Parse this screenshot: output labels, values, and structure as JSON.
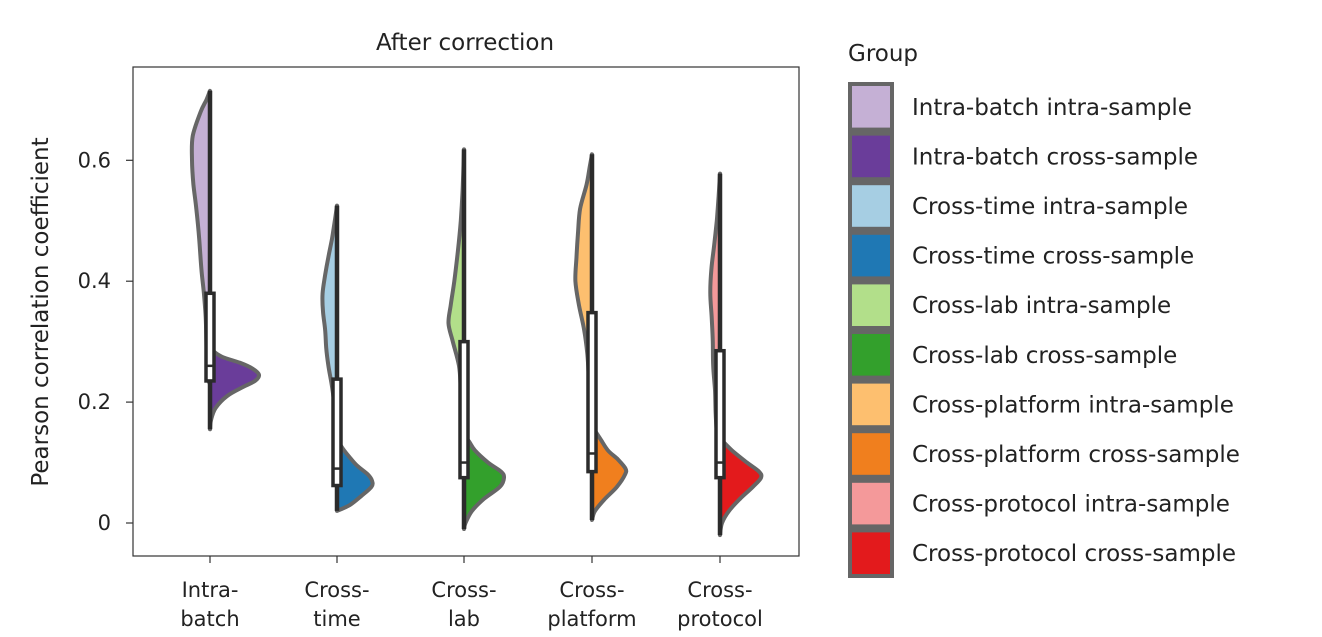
{
  "chart_data": {
    "type": "violin",
    "title": "After correction",
    "ylabel": "Pearson correlation coefficient",
    "xlabel": "",
    "ylim": [
      -0.06,
      0.75
    ],
    "yticks": [
      0,
      0.2,
      0.4,
      0.6
    ],
    "ytick_labels": [
      "0",
      "0.2",
      "0.4",
      "0.6"
    ],
    "grid": false,
    "legend_position": "right",
    "legend_title": "Group",
    "categories": [
      {
        "label_lines": [
          "Intra-",
          "batch"
        ],
        "label": "Intra-batch"
      },
      {
        "label_lines": [
          "Cross-",
          "time"
        ],
        "label": "Cross-time"
      },
      {
        "label_lines": [
          "Cross-",
          "lab"
        ],
        "label": "Cross-lab"
      },
      {
        "label_lines": [
          "Cross-",
          "platform"
        ],
        "label": "Cross-platform"
      },
      {
        "label_lines": [
          "Cross-",
          "protocol"
        ],
        "label": "Cross-protocol"
      }
    ],
    "series": [
      {
        "name": "Intra-batch intra-sample",
        "color": "#c5b0d5"
      },
      {
        "name": "Intra-batch cross-sample",
        "color": "#6a3d9a"
      },
      {
        "name": "Cross-time intra-sample",
        "color": "#a6cee3"
      },
      {
        "name": "Cross-time cross-sample",
        "color": "#1f78b4"
      },
      {
        "name": "Cross-lab intra-sample",
        "color": "#b2df8a"
      },
      {
        "name": "Cross-lab cross-sample",
        "color": "#33a02c"
      },
      {
        "name": "Cross-platform intra-sample",
        "color": "#fdbf6f"
      },
      {
        "name": "Cross-platform cross-sample",
        "color": "#f07f1e"
      },
      {
        "name": "Cross-protocol intra-sample",
        "color": "#f4999a"
      },
      {
        "name": "Cross-protocol cross-sample",
        "color": "#e31a1c"
      }
    ],
    "violins": [
      {
        "category": "Intra-batch",
        "intra": {
          "range": [
            0.23,
            0.715
          ],
          "density": [
            [
              0.23,
              0.0
            ],
            [
              0.24,
              0.7
            ],
            [
              0.26,
              0.9
            ],
            [
              0.3,
              1.0
            ],
            [
              0.34,
              1.2
            ],
            [
              0.38,
              1.7
            ],
            [
              0.42,
              2.4
            ],
            [
              0.47,
              3.0
            ],
            [
              0.52,
              3.8
            ],
            [
              0.56,
              4.6
            ],
            [
              0.6,
              5.0
            ],
            [
              0.64,
              4.8
            ],
            [
              0.68,
              2.6
            ],
            [
              0.7,
              1.0
            ],
            [
              0.715,
              0.0
            ]
          ]
        },
        "cross": {
          "range": [
            0.155,
            0.295
          ],
          "density": [
            [
              0.155,
              0.0
            ],
            [
              0.17,
              0.2
            ],
            [
              0.19,
              1.1
            ],
            [
              0.21,
              3.4
            ],
            [
              0.225,
              6.6
            ],
            [
              0.235,
              9.0
            ],
            [
              0.245,
              9.8
            ],
            [
              0.255,
              8.6
            ],
            [
              0.265,
              6.0
            ],
            [
              0.275,
              2.4
            ],
            [
              0.285,
              0.6
            ],
            [
              0.295,
              0.0
            ]
          ]
        },
        "box": {
          "q1": 0.235,
          "median": 0.26,
          "q3": 0.38,
          "whisker_low": 0.155,
          "whisker_high": 0.715
        }
      },
      {
        "category": "Cross-time",
        "intra": {
          "range": [
            0.175,
            0.525
          ],
          "density": [
            [
              0.175,
              0.0
            ],
            [
              0.18,
              0.4
            ],
            [
              0.2,
              0.8
            ],
            [
              0.23,
              1.5
            ],
            [
              0.26,
              2.4
            ],
            [
              0.29,
              3.0
            ],
            [
              0.32,
              3.3
            ],
            [
              0.35,
              3.9
            ],
            [
              0.38,
              4.0
            ],
            [
              0.41,
              3.3
            ],
            [
              0.44,
              2.4
            ],
            [
              0.47,
              1.4
            ],
            [
              0.5,
              0.6
            ],
            [
              0.525,
              0.0
            ]
          ]
        },
        "cross": {
          "range": [
            0.02,
            0.14
          ],
          "density": [
            [
              0.02,
              0.0
            ],
            [
              0.03,
              2.6
            ],
            [
              0.045,
              4.9
            ],
            [
              0.06,
              6.9
            ],
            [
              0.07,
              7.0
            ],
            [
              0.08,
              6.2
            ],
            [
              0.095,
              4.0
            ],
            [
              0.11,
              2.4
            ],
            [
              0.125,
              1.0
            ],
            [
              0.14,
              0.0
            ]
          ]
        },
        "box": {
          "q1": 0.062,
          "median": 0.09,
          "q3": 0.238,
          "whisker_low": 0.02,
          "whisker_high": 0.525
        }
      },
      {
        "category": "Cross-lab",
        "intra": {
          "range": [
            0.075,
            0.618
          ],
          "density": [
            [
              0.075,
              0.0
            ],
            [
              0.1,
              0.3
            ],
            [
              0.14,
              0.6
            ],
            [
              0.18,
              0.8
            ],
            [
              0.22,
              0.9
            ],
            [
              0.26,
              1.4
            ],
            [
              0.3,
              3.1
            ],
            [
              0.33,
              4.3
            ],
            [
              0.36,
              3.7
            ],
            [
              0.4,
              2.7
            ],
            [
              0.45,
              1.7
            ],
            [
              0.5,
              0.9
            ],
            [
              0.55,
              0.4
            ],
            [
              0.618,
              0.0
            ]
          ]
        },
        "cross": {
          "range": [
            -0.01,
            0.145
          ],
          "density": [
            [
              -0.01,
              0.0
            ],
            [
              0.0,
              0.3
            ],
            [
              0.02,
              1.6
            ],
            [
              0.04,
              4.0
            ],
            [
              0.06,
              7.2
            ],
            [
              0.075,
              8.0
            ],
            [
              0.085,
              7.4
            ],
            [
              0.1,
              4.8
            ],
            [
              0.12,
              2.2
            ],
            [
              0.135,
              1.0
            ],
            [
              0.145,
              0.0
            ]
          ]
        },
        "box": {
          "q1": 0.075,
          "median": 0.1,
          "q3": 0.3,
          "whisker_low": -0.01,
          "whisker_high": 0.618
        }
      },
      {
        "category": "Cross-platform",
        "intra": {
          "range": [
            0.09,
            0.61
          ],
          "density": [
            [
              0.09,
              0.0
            ],
            [
              0.12,
              0.3
            ],
            [
              0.16,
              0.5
            ],
            [
              0.2,
              0.7
            ],
            [
              0.24,
              0.9
            ],
            [
              0.28,
              1.3
            ],
            [
              0.32,
              2.2
            ],
            [
              0.36,
              3.6
            ],
            [
              0.4,
              4.6
            ],
            [
              0.44,
              4.3
            ],
            [
              0.48,
              3.9
            ],
            [
              0.52,
              3.3
            ],
            [
              0.56,
              1.5
            ],
            [
              0.59,
              0.6
            ],
            [
              0.61,
              0.0
            ]
          ]
        },
        "cross": {
          "range": [
            0.005,
            0.16
          ],
          "density": [
            [
              0.005,
              0.0
            ],
            [
              0.02,
              0.6
            ],
            [
              0.04,
              2.6
            ],
            [
              0.06,
              5.0
            ],
            [
              0.08,
              6.6
            ],
            [
              0.09,
              6.7
            ],
            [
              0.105,
              5.2
            ],
            [
              0.12,
              3.2
            ],
            [
              0.14,
              1.6
            ],
            [
              0.16,
              0.0
            ]
          ]
        },
        "box": {
          "q1": 0.085,
          "median": 0.115,
          "q3": 0.348,
          "whisker_low": 0.005,
          "whisker_high": 0.61
        }
      },
      {
        "category": "Cross-protocol",
        "intra": {
          "range": [
            0.08,
            0.578
          ],
          "density": [
            [
              0.08,
              0.0
            ],
            [
              0.1,
              0.5
            ],
            [
              0.14,
              0.8
            ],
            [
              0.18,
              1.2
            ],
            [
              0.22,
              1.4
            ],
            [
              0.26,
              1.9
            ],
            [
              0.3,
              2.0
            ],
            [
              0.34,
              2.3
            ],
            [
              0.38,
              2.7
            ],
            [
              0.42,
              2.4
            ],
            [
              0.46,
              1.6
            ],
            [
              0.5,
              0.9
            ],
            [
              0.54,
              0.4
            ],
            [
              0.578,
              0.0
            ]
          ]
        },
        "cross": {
          "range": [
            -0.02,
            0.14
          ],
          "density": [
            [
              -0.02,
              0.0
            ],
            [
              0.0,
              0.4
            ],
            [
              0.02,
              1.8
            ],
            [
              0.04,
              4.0
            ],
            [
              0.06,
              6.6
            ],
            [
              0.075,
              8.2
            ],
            [
              0.085,
              7.8
            ],
            [
              0.1,
              5.4
            ],
            [
              0.12,
              2.4
            ],
            [
              0.14,
              0.0
            ]
          ]
        },
        "box": {
          "q1": 0.075,
          "median": 0.1,
          "q3": 0.285,
          "whisker_low": -0.02,
          "whisker_high": 0.578
        }
      }
    ]
  }
}
